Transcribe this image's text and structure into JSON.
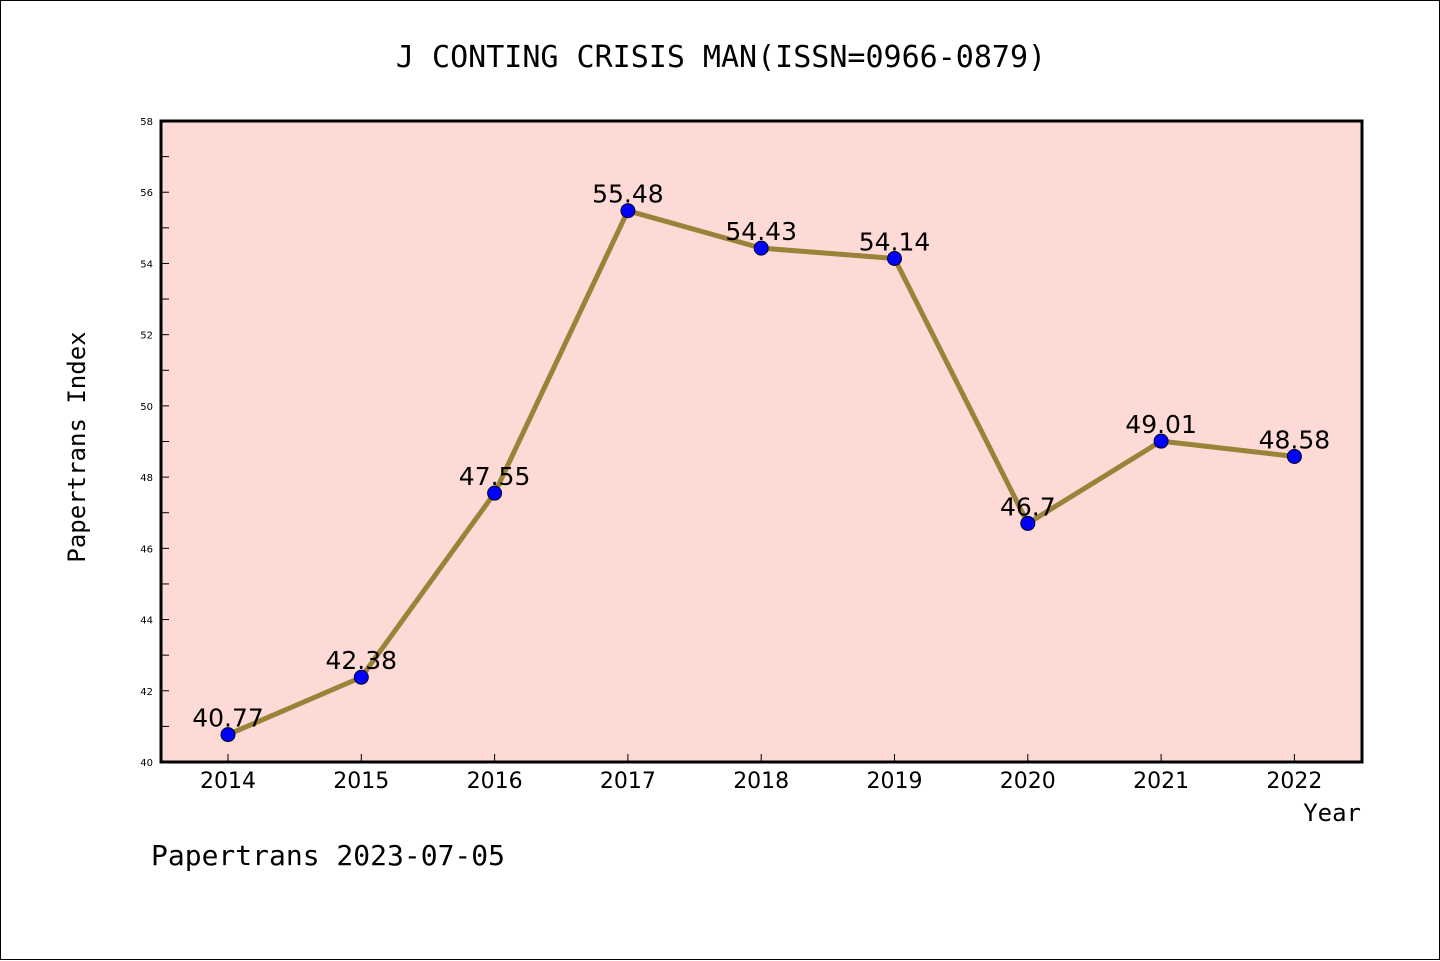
{
  "chart_data": {
    "type": "line",
    "title": "J CONTING CRISIS MAN(ISSN=0966-0879)",
    "xlabel": "Year",
    "ylabel": "Papertrans Index",
    "categories": [
      "2014",
      "2015",
      "2016",
      "2017",
      "2018",
      "2019",
      "2020",
      "2021",
      "2022"
    ],
    "series": [
      {
        "values": [
          40.77,
          42.38,
          47.55,
          55.48,
          54.43,
          54.14,
          46.7,
          49.01,
          48.58
        ],
        "labels": [
          "40.77",
          "42.38",
          "47.55",
          "55.48",
          "54.43",
          "54.14",
          "46.7",
          "49.01",
          "48.58"
        ]
      }
    ],
    "ylim": [
      40,
      58
    ],
    "yticks": [
      "40",
      "42",
      "44",
      "46",
      "48",
      "50",
      "52",
      "54",
      "56",
      "58"
    ],
    "grid": false,
    "colors": {
      "plot_background": "#fddad6",
      "line": "#9a8238",
      "marker": "#0000ff"
    }
  },
  "footer": "Papertrans 2023-07-05"
}
